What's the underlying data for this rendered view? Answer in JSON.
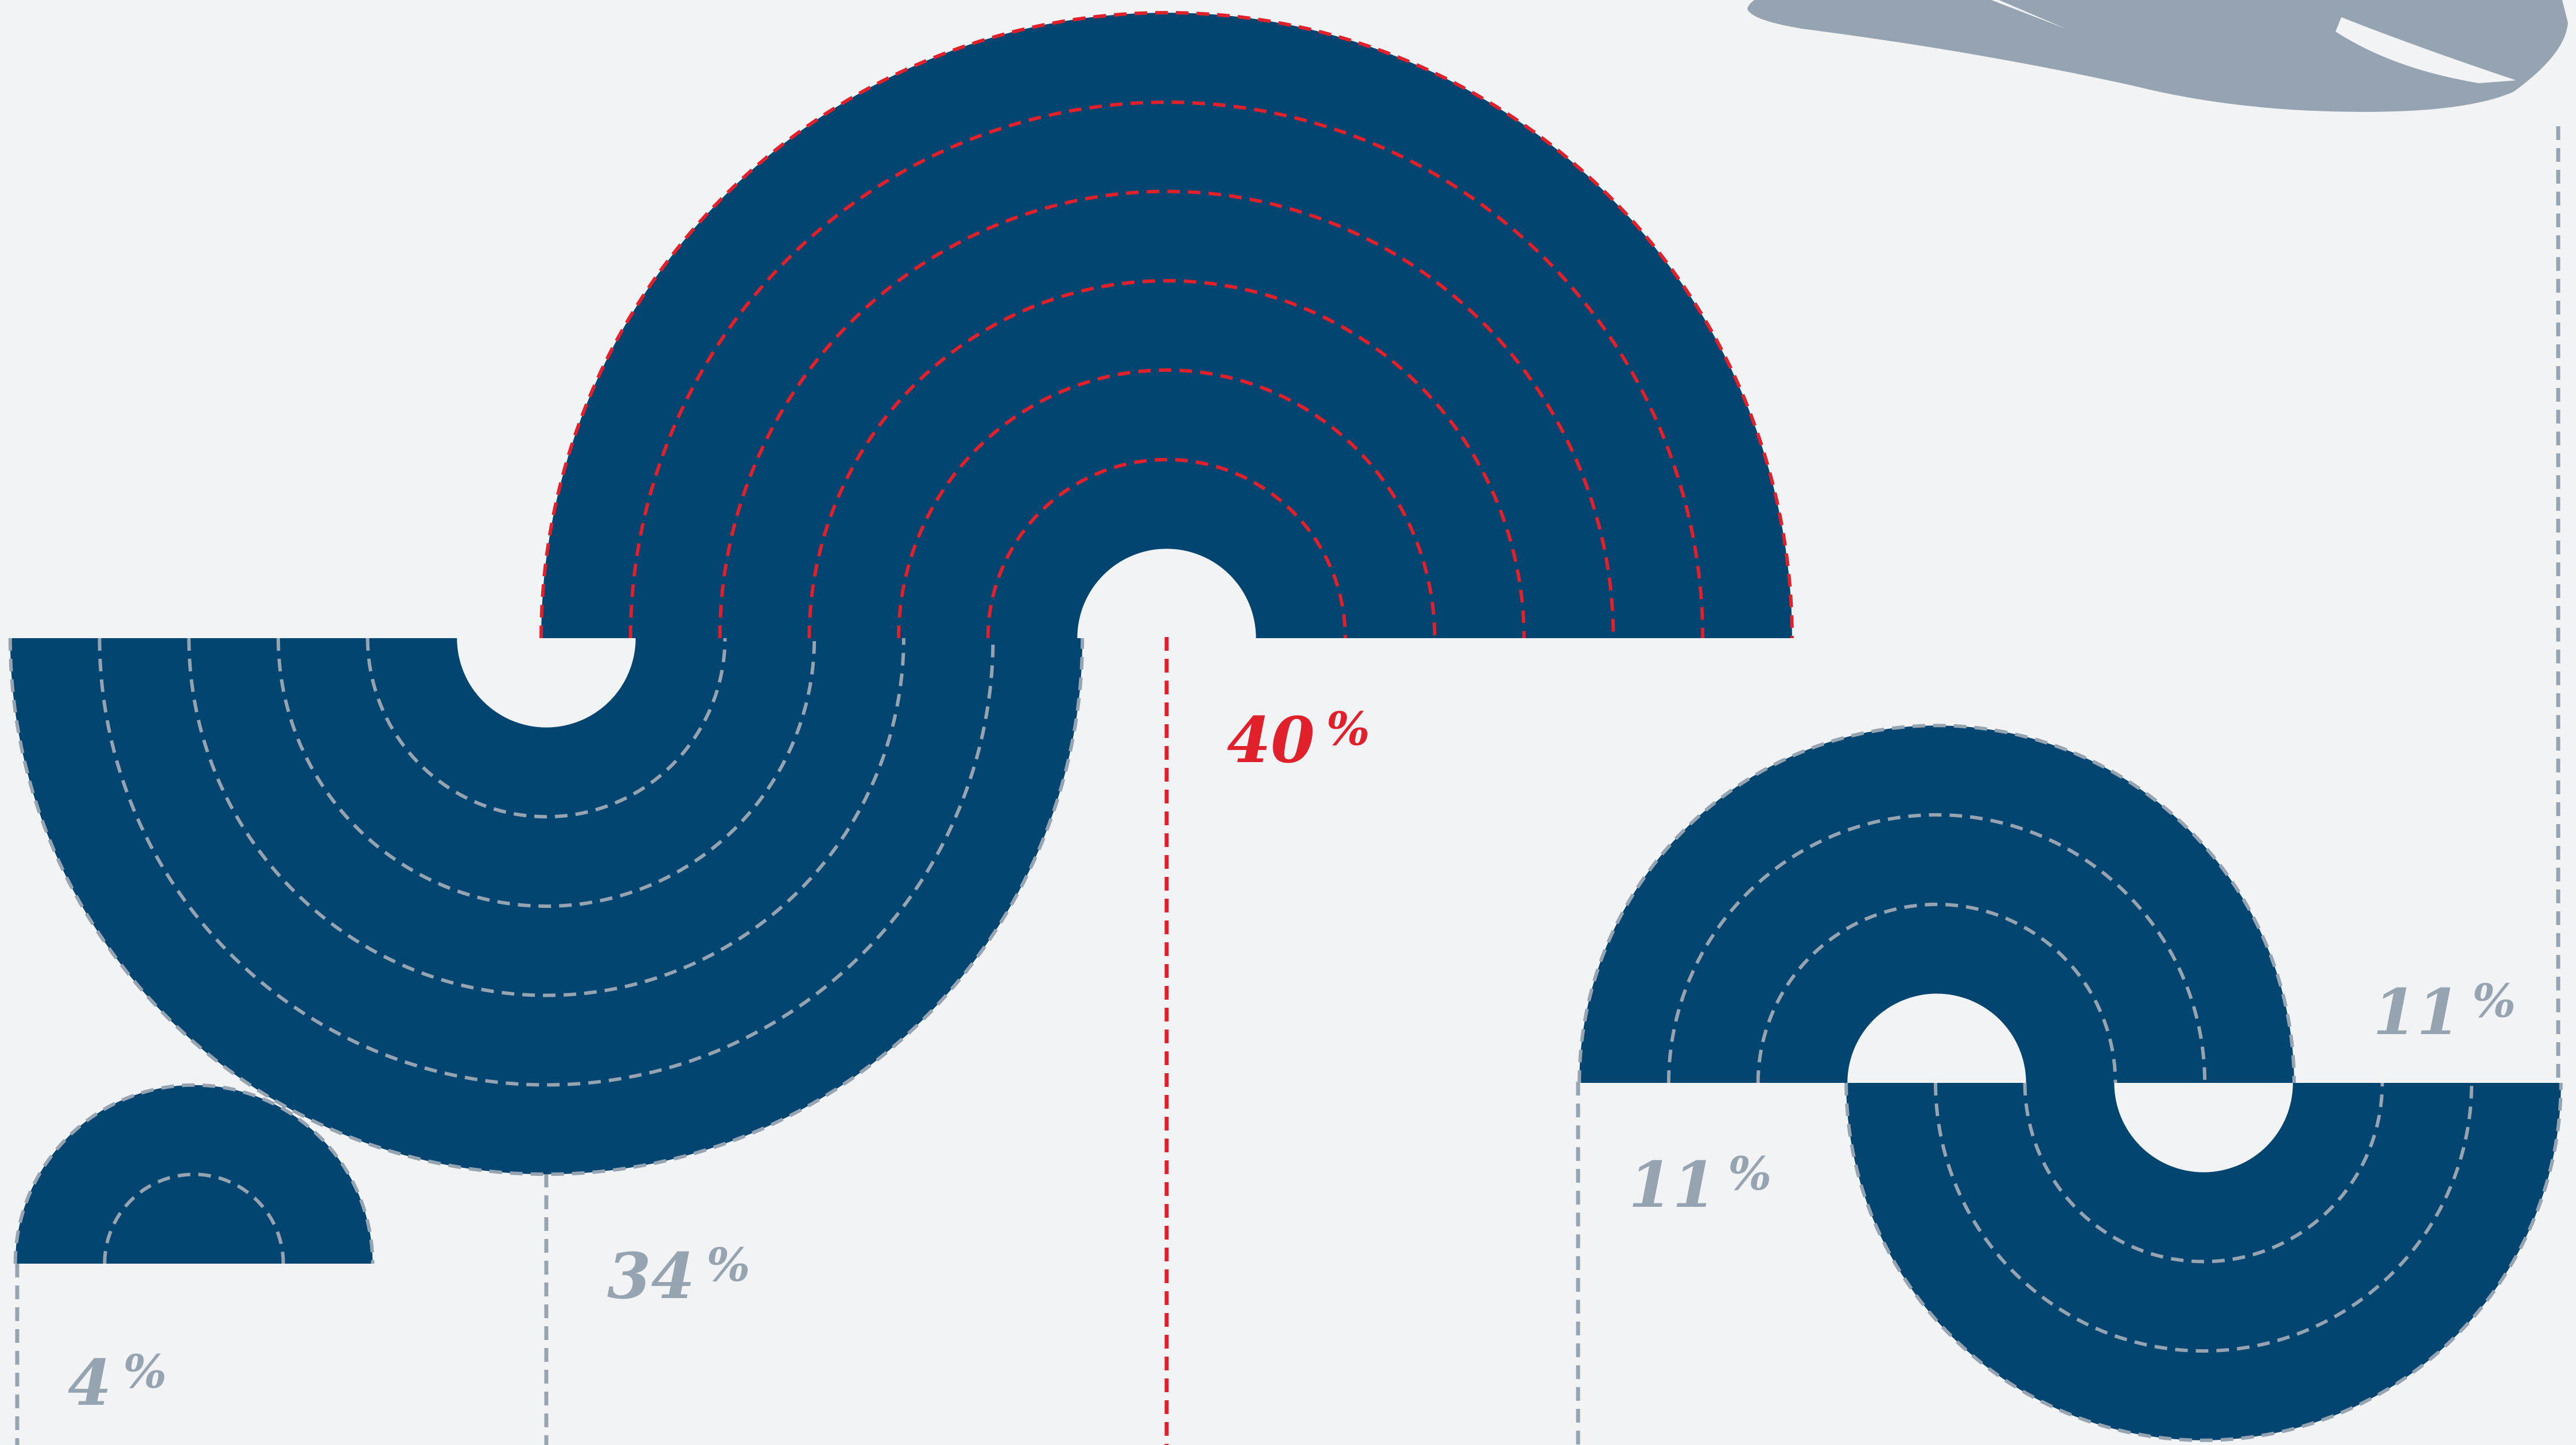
{
  "chart_data": {
    "type": "area",
    "representation": "nested semicircular arc bands, one band per unit",
    "series": [
      {
        "label": "4",
        "percent_sign": "%",
        "value": 4,
        "highlight": false
      },
      {
        "label": "34",
        "percent_sign": "%",
        "value": 34,
        "highlight": false
      },
      {
        "label": "40",
        "percent_sign": "%",
        "value": 40,
        "highlight": true
      },
      {
        "label": "11",
        "percent_sign": "%",
        "value": 11,
        "highlight": false
      },
      {
        "label": "11",
        "percent_sign": "%",
        "value": 11,
        "highlight": false
      }
    ]
  },
  "colors": {
    "background": "#f1f3f5",
    "band_fill": "#034571",
    "highlight": "#e0202a",
    "muted": "#96a3b0"
  },
  "decor": {
    "airplane_icon": "airplane-icon"
  }
}
